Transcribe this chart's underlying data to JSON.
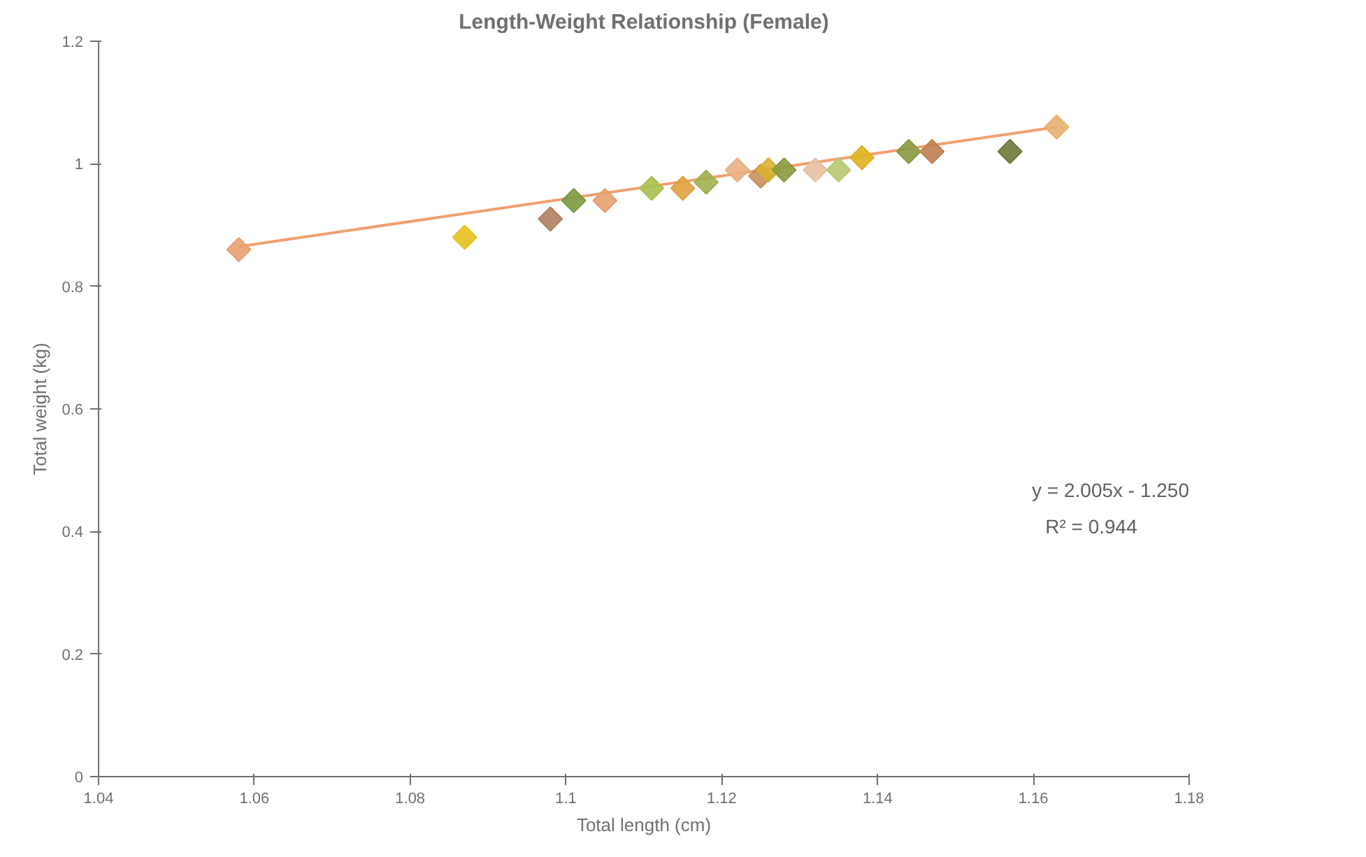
{
  "chart_data": {
    "type": "scatter",
    "title": "Length-Weight Relationship (Female)",
    "xlabel": "Total length (cm)",
    "ylabel": "Total weight (kg)",
    "xlim": [
      1.04,
      1.18
    ],
    "xticks": [
      1.04,
      1.06,
      1.08,
      1.1,
      1.12,
      1.14,
      1.16,
      1.18
    ],
    "ylim": [
      0,
      1.2
    ],
    "yticks": [
      0,
      0.2,
      0.4,
      0.6,
      0.8,
      1,
      1.2
    ],
    "grid": false,
    "marker": "diamond",
    "series": [
      {
        "x": [
          1.058,
          1.087,
          1.098,
          1.101,
          1.105,
          1.111,
          1.115,
          1.118,
          1.122,
          1.125,
          1.126,
          1.128,
          1.132,
          1.135,
          1.138,
          1.144,
          1.147,
          1.157,
          1.163
        ],
        "values": [
          0.86,
          0.88,
          0.91,
          0.94,
          0.94,
          0.96,
          0.96,
          0.97,
          0.99,
          0.98,
          0.99,
          0.99,
          0.99,
          0.99,
          1.01,
          1.02,
          1.02,
          1.02,
          1.06
        ],
        "colors": [
          "#e8a070",
          "#e8c020",
          "#b08060",
          "#7a9a40",
          "#e8a070",
          "#a8c050",
          "#e0a040",
          "#a0b050",
          "#e8b080",
          "#c89060",
          "#d8b030",
          "#8a9a40",
          "#e8c0a0",
          "#b8c870",
          "#e0b020",
          "#8a9a40",
          "#c08050",
          "#6a7a3a",
          "#e8b070"
        ]
      },
      {
        "type": "line",
        "x": [
          1.058,
          1.163
        ],
        "values": [
          0.865,
          1.06
        ],
        "color": "#f0a070",
        "marker": "none"
      }
    ],
    "annotations": [
      "y = 2.005x - 1.250",
      "R² = 0.944"
    ]
  }
}
